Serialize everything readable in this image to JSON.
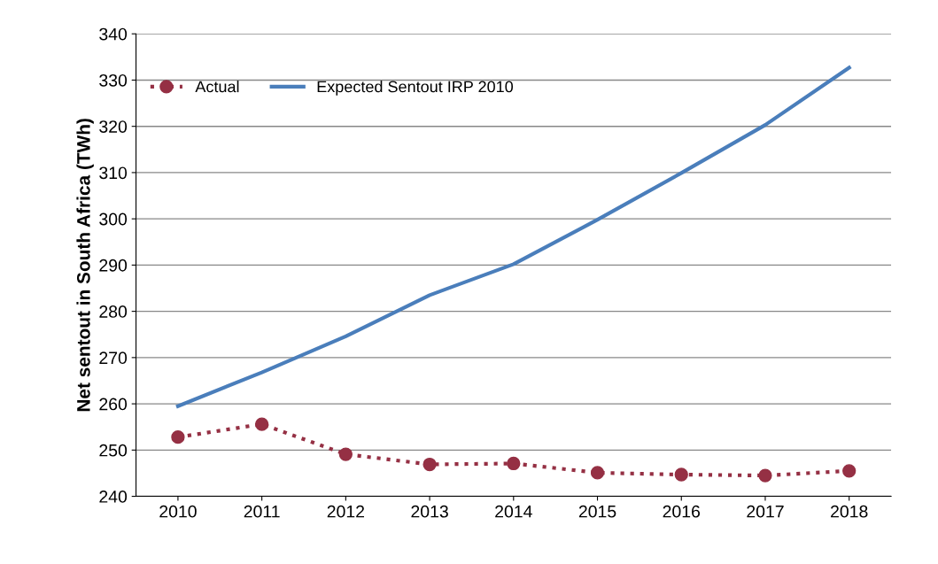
{
  "chart_data": {
    "type": "line",
    "ylabel": "Net sentout in South Africa (TWh)",
    "categories": [
      "2010",
      "2011",
      "2012",
      "2013",
      "2014",
      "2015",
      "2016",
      "2017",
      "2018"
    ],
    "series": [
      {
        "name": "Actual",
        "color": "#953044",
        "marker": "circle",
        "line_style": "dotted",
        "values": [
          252.8,
          255.6,
          249.1,
          246.9,
          247.1,
          245.1,
          244.7,
          244.5,
          245.5
        ]
      },
      {
        "name": "Expected Sentout IRP 2010",
        "color": "#4a7ebb",
        "marker": "none",
        "line_style": "solid",
        "values": [
          259.5,
          266.8,
          274.6,
          283.5,
          290.2,
          299.8,
          309.9,
          320.3,
          332.7
        ]
      }
    ],
    "ylim": [
      240,
      340
    ],
    "yticks": [
      240,
      250,
      260,
      270,
      280,
      290,
      300,
      310,
      320,
      330,
      340
    ],
    "grid": "y",
    "legend": "top left"
  }
}
